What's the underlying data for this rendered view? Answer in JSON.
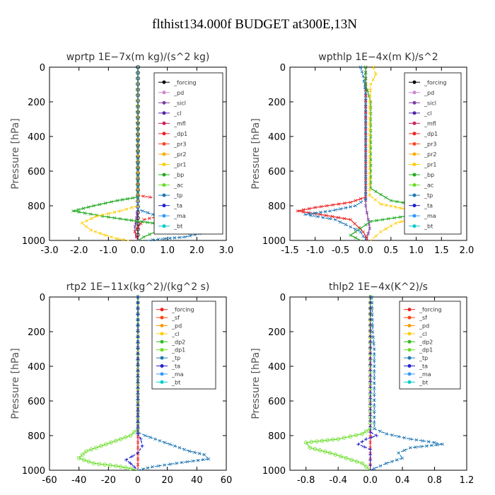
{
  "title": "flthist134.000f  BUDGET at300E,13N",
  "chart_data": [
    {
      "type": "line",
      "title": "wprtp   1E−7x(m kg)/(s^2 kg)",
      "ylabel": "Pressure [hPa]",
      "xlim": [
        -3,
        3
      ],
      "xticks": [
        -3,
        -2,
        -1,
        0,
        1,
        2,
        3
      ],
      "xtick_labels": [
        "-3.0",
        "-2.0",
        "-1.0",
        "0.0",
        "1.0",
        "2.0",
        "3.0"
      ],
      "ylim": [
        1000,
        0
      ],
      "yticks": [
        0,
        200,
        400,
        600,
        800,
        1000
      ],
      "ytick_labels": [
        "0",
        "200",
        "400",
        "600",
        "800",
        "1000"
      ],
      "legend": [
        "_forcing",
        "_pd",
        "_sicl",
        "_cl",
        "_mfl",
        "_dp1",
        "_pr3",
        "_pr2",
        "_pr1",
        "_bp",
        "_ac",
        "_tp",
        "_ta",
        "_ma",
        "_bt"
      ],
      "series": [
        {
          "name": "_forcing",
          "color": "#000000",
          "marker": "o",
          "dash": "",
          "x": [
            0,
            0
          ],
          "y": [
            0,
            1000
          ]
        },
        {
          "name": "_sicl",
          "color": "#7f3f9f",
          "marker": "x",
          "dash": "",
          "x": [
            0,
            0,
            -0.05,
            -0.1,
            -0.1,
            -0.05,
            0
          ],
          "y": [
            0,
            820,
            870,
            920,
            950,
            980,
            1000
          ]
        },
        {
          "name": "_dp1",
          "color": "#ee2222",
          "marker": "x",
          "dash": "4,2",
          "x": [
            0,
            0,
            0.8,
            1.5,
            1.8,
            1.0,
            0.2,
            -0.1,
            0
          ],
          "y": [
            0,
            740,
            760,
            790,
            820,
            850,
            880,
            950,
            1000
          ]
        },
        {
          "name": "_bp",
          "color": "#22aa22",
          "marker": "x",
          "dash": "",
          "x": [
            0,
            0,
            -0.7,
            -1.5,
            -2.2,
            -1.2,
            -0.4,
            0.5,
            1.0,
            0.6,
            0.2,
            0
          ],
          "y": [
            0,
            750,
            770,
            800,
            830,
            860,
            880,
            900,
            920,
            950,
            980,
            1000
          ]
        },
        {
          "name": "_pr1",
          "color": "#ffcc00",
          "marker": "x",
          "dash": "4,2",
          "x": [
            0,
            0,
            -0.6,
            -1.4,
            -1.9,
            -1.6,
            -1.1,
            -0.7,
            -0.3
          ],
          "y": [
            0,
            800,
            830,
            860,
            900,
            940,
            970,
            990,
            1000
          ]
        },
        {
          "name": "_tp",
          "color": "#1f77b4",
          "marker": "x",
          "dash": "4,2",
          "x": [
            0,
            0,
            0.5,
            1.0,
            1.8,
            2.1,
            1.6,
            0.9,
            0.3
          ],
          "y": [
            0,
            820,
            850,
            880,
            920,
            960,
            980,
            990,
            1000
          ]
        }
      ]
    },
    {
      "type": "line",
      "title": "wpthlp   1E−4x(m K)/s^2",
      "ylabel": "Pressure [hPa]",
      "xlim": [
        -1.5,
        2.0
      ],
      "xticks": [
        -1.5,
        -1.0,
        -0.5,
        0.0,
        0.5,
        1.0,
        1.5,
        2.0
      ],
      "xtick_labels": [
        "-1.5",
        "-1.0",
        "-0.5",
        "0.0",
        "0.5",
        "1.0",
        "1.5",
        "2.0"
      ],
      "ylim": [
        1000,
        0
      ],
      "yticks": [
        0,
        200,
        400,
        600,
        800,
        1000
      ],
      "ytick_labels": [
        "0",
        "200",
        "400",
        "600",
        "800",
        "1000"
      ],
      "legend": [
        "_forcing",
        "_pd",
        "_sicl",
        "_cl",
        "_mfl",
        "_dp1",
        "_pr3",
        "_pr2",
        "_pr1",
        "_bp",
        "_ac",
        "_tp",
        "_ta",
        "_ma",
        "_bt"
      ],
      "series": [
        {
          "name": "_sicl",
          "color": "#7f3f9f",
          "marker": "x",
          "dash": "",
          "x": [
            0,
            0,
            0.05,
            0.08,
            0.05,
            0.02
          ],
          "y": [
            0,
            800,
            880,
            930,
            960,
            1000
          ]
        },
        {
          "name": "_dp1",
          "color": "#ee2222",
          "marker": "x",
          "dash": "",
          "x": [
            0,
            0,
            -0.3,
            -1.0,
            -1.35,
            -0.9,
            -0.3,
            -0.05,
            0.05
          ],
          "y": [
            0,
            750,
            780,
            810,
            830,
            850,
            880,
            950,
            1000
          ]
        },
        {
          "name": "_bp",
          "color": "#22aa22",
          "marker": "x",
          "dash": "",
          "x": [
            0,
            0,
            0.1,
            0.1,
            0.5,
            1.1,
            1.6,
            0.8,
            0.1,
            -0.1,
            -0.3,
            -0.1
          ],
          "y": [
            0,
            100,
            200,
            700,
            770,
            800,
            830,
            860,
            890,
            930,
            970,
            1000
          ]
        },
        {
          "name": "_pr1",
          "color": "#ffcc00",
          "marker": "x",
          "dash": "4,2",
          "x": [
            0.15,
            0.2,
            0.1,
            0.08,
            0.08,
            0.3,
            0.8,
            1.1,
            0.6,
            0.3,
            0.1
          ],
          "y": [
            0,
            40,
            100,
            200,
            740,
            790,
            820,
            860,
            900,
            950,
            1000
          ]
        },
        {
          "name": "_tp",
          "color": "#1f77b4",
          "marker": "x",
          "dash": "4,2",
          "x": [
            -0.1,
            -0.05,
            0,
            0,
            -0.2,
            -0.7,
            -1.2,
            -0.6,
            -0.1,
            0
          ],
          "y": [
            0,
            50,
            150,
            760,
            800,
            830,
            850,
            880,
            950,
            1000
          ]
        }
      ]
    },
    {
      "type": "line",
      "title": "rtp2   1E−11x(kg^2)/(kg^2 s)",
      "ylabel": "Pressure [hPa]",
      "xlim": [
        -60,
        60
      ],
      "xticks": [
        -60,
        -40,
        -20,
        0,
        20,
        40,
        60
      ],
      "xtick_labels": [
        "-60",
        "-40",
        "-20",
        "0",
        "20",
        "40",
        "60"
      ],
      "ylim": [
        1000,
        0
      ],
      "yticks": [
        0,
        200,
        400,
        600,
        800,
        1000
      ],
      "ytick_labels": [
        "0",
        "200",
        "400",
        "600",
        "800",
        "1000"
      ],
      "legend": [
        "_forcing",
        "_sf",
        "_pd",
        "_cl",
        "_dp2",
        "_dp1",
        "_tp",
        "_ta",
        "_ma",
        "_bt"
      ],
      "series": [
        {
          "name": "_forcing",
          "color": "#ee2222",
          "marker": "x",
          "dash": "",
          "x": [
            0,
            0
          ],
          "y": [
            0,
            1000
          ]
        },
        {
          "name": "_dp1",
          "color": "#66dd22",
          "marker": "o",
          "dash": "",
          "x": [
            0,
            0,
            -5,
            -15,
            -25,
            -35,
            -40,
            -30,
            -15,
            -5,
            0
          ],
          "y": [
            0,
            760,
            800,
            830,
            860,
            890,
            930,
            960,
            975,
            990,
            1000
          ]
        },
        {
          "name": "_tp",
          "color": "#1f77b4",
          "marker": "x",
          "dash": "4,2",
          "x": [
            0,
            0,
            5,
            15,
            25,
            35,
            45,
            48,
            30,
            10,
            0
          ],
          "y": [
            0,
            780,
            800,
            830,
            860,
            890,
            910,
            935,
            955,
            980,
            1000
          ]
        },
        {
          "name": "_ta",
          "color": "#2222cc",
          "marker": "+",
          "dash": "4,2",
          "x": [
            0,
            0,
            2,
            3,
            0,
            -4,
            -8,
            -5,
            0
          ],
          "y": [
            0,
            790,
            820,
            860,
            900,
            920,
            940,
            960,
            1000
          ]
        }
      ]
    },
    {
      "type": "line",
      "title": "thlp2   1E−4x(K^2)/s",
      "ylabel": "Pressure [hPa]",
      "xlim": [
        -1.0,
        1.2
      ],
      "xticks": [
        -0.8,
        -0.4,
        0.0,
        0.4,
        0.8,
        1.2
      ],
      "xtick_labels": [
        "-0.8",
        "-0.4",
        "0.0",
        "0.4",
        "0.8",
        "1.2"
      ],
      "ylim": [
        1000,
        0
      ],
      "yticks": [
        0,
        200,
        400,
        600,
        800,
        1000
      ],
      "ytick_labels": [
        "0",
        "200",
        "400",
        "600",
        "800",
        "1000"
      ],
      "legend": [
        "_forcing",
        "_sf",
        "_pd",
        "_cl",
        "_dp2",
        "_dp1",
        "_tp",
        "_ta",
        "_ma",
        "_bt"
      ],
      "series": [
        {
          "name": "_forcing",
          "color": "#ee2222",
          "marker": "x",
          "dash": "",
          "x": [
            0,
            0
          ],
          "y": [
            0,
            1000
          ]
        },
        {
          "name": "_tp",
          "color": "#1f77b4",
          "marker": "x",
          "dash": "4,2",
          "x": [
            0.02,
            0.03,
            0.05,
            0.05,
            0.2,
            0.5,
            0.8,
            0.9,
            0.5,
            0.35,
            0.4,
            0.2,
            0.05,
            0
          ],
          "y": [
            0,
            200,
            300,
            760,
            790,
            820,
            840,
            850,
            870,
            900,
            930,
            960,
            990,
            1000
          ]
        },
        {
          "name": "_dp1",
          "color": "#66dd22",
          "marker": "o",
          "dash": "",
          "x": [
            0,
            0,
            -0.1,
            -0.4,
            -0.8,
            -0.75,
            -0.5,
            -0.3,
            -0.1,
            0
          ],
          "y": [
            0,
            760,
            790,
            820,
            840,
            870,
            900,
            930,
            960,
            1000
          ]
        },
        {
          "name": "_ta",
          "color": "#2222cc",
          "marker": "+",
          "dash": "4,2",
          "x": [
            0,
            0,
            0.08,
            -0.05,
            -0.15,
            0,
            0
          ],
          "y": [
            0,
            780,
            800,
            820,
            850,
            880,
            1000
          ]
        }
      ]
    }
  ]
}
